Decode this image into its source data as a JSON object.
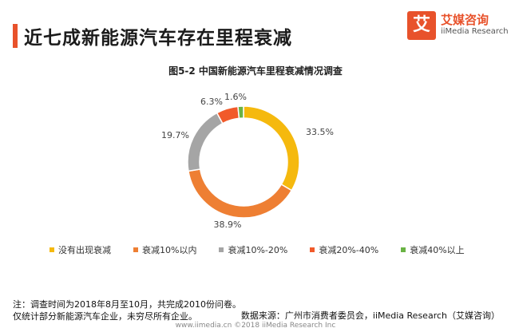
{
  "header": {
    "title": "近七成新能源汽车存在里程衰减",
    "logo_cn": "艾媒咨询",
    "logo_en": "iiMedia Research",
    "logo_mark": "艾"
  },
  "chart_data": {
    "type": "pie",
    "donut": true,
    "title": "图5-2 中国新能源汽车里程衰减情况调查",
    "series": [
      {
        "name": "没有出现衰减",
        "value": 33.5,
        "label": "33.5%",
        "color": "#f5b90e"
      },
      {
        "name": "衰减10%以内",
        "value": 38.9,
        "label": "38.9%",
        "color": "#ee7f33"
      },
      {
        "name": "衰减10%-20%",
        "value": 19.7,
        "label": "19.7%",
        "color": "#a5a5a5"
      },
      {
        "name": "衰减20%-40%",
        "value": 6.3,
        "label": "6.3%",
        "color": "#f15a2a"
      },
      {
        "name": "衰减40%以上",
        "value": 1.6,
        "label": "1.6%",
        "color": "#6ab344"
      }
    ],
    "legend_position": "bottom"
  },
  "notes": {
    "line1": "注：调查时间为2018年8月至10月，共完成2010份问卷。",
    "line2": "仅统计部分新能源汽车企业，未穷尽所有企业。",
    "source": "数据来源：广州市消费者委员会，iiMedia Research（艾媒咨询）"
  },
  "footer": {
    "text": "www.iimedia.cn    ©2018  iiMedia Research  Inc"
  }
}
